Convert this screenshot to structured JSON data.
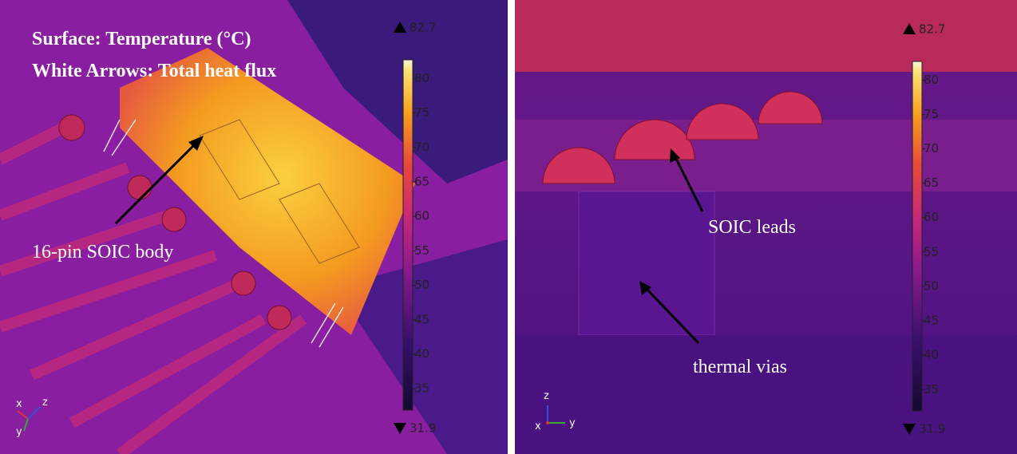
{
  "panels": [
    {
      "title_lines": [
        "Surface: Temperature (°C)",
        "White Arrows: Total heat flux"
      ],
      "annotations": [
        "16-pin SOIC body"
      ],
      "colorbar": {
        "max": 82.7,
        "min": 31.9,
        "ticks": [
          35,
          40,
          45,
          50,
          55,
          60,
          65,
          70,
          75,
          80
        ]
      },
      "axis_labels": [
        "x",
        "z",
        "y"
      ]
    },
    {
      "annotations": [
        "SOIC leads",
        "thermal vias"
      ],
      "colorbar": {
        "max": 82.7,
        "min": 31.9,
        "ticks": [
          35,
          40,
          45,
          50,
          55,
          60,
          65,
          70,
          75,
          80
        ]
      },
      "axis_labels": [
        "z",
        "x",
        "y"
      ]
    }
  ]
}
